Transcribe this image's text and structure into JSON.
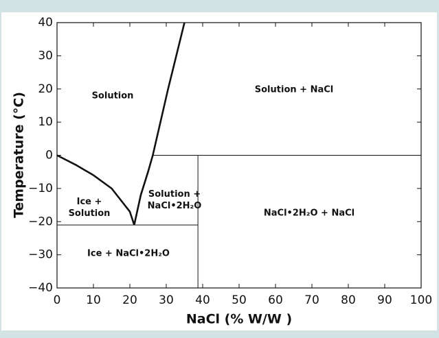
{
  "chart_data": {
    "type": "line",
    "x_label": "NaCl (% W/W )",
    "y_label": "Temperature (°C)",
    "xlim": [
      0,
      100
    ],
    "ylim": [
      -40,
      40
    ],
    "xticks": [
      0,
      10,
      20,
      30,
      40,
      50,
      60,
      70,
      80,
      90,
      100
    ],
    "yticks": [
      {
        "value": -40,
        "label": "−40"
      },
      {
        "value": -30,
        "label": "−30"
      },
      {
        "value": -20,
        "label": "−20"
      },
      {
        "value": -10,
        "label": "−10"
      },
      0,
      10,
      20,
      30,
      40
    ],
    "series": [
      {
        "color": "#111111",
        "width": 2.6,
        "x": [
          0,
          5,
          10,
          15,
          20,
          21.2
        ],
        "values": [
          0,
          -2.8,
          -6,
          -10,
          -17,
          -21
        ]
      },
      {
        "color": "#111111",
        "width": 2.6,
        "x": [
          21.2,
          23,
          25,
          26.3,
          30.5,
          35
        ],
        "values": [
          -21,
          -12,
          -5,
          0,
          20,
          40
        ]
      },
      {
        "color": "#111111",
        "width": 1,
        "x": [
          0,
          38.7
        ],
        "values": [
          -21,
          -21
        ]
      },
      {
        "color": "#111111",
        "width": 1,
        "x": [
          38.7,
          38.7
        ],
        "values": [
          0,
          -40
        ]
      },
      {
        "color": "#111111",
        "width": 1,
        "x": [
          26.3,
          100
        ],
        "values": [
          0,
          0
        ]
      }
    ],
    "annotations": [
      [
        "Solution"
      ],
      [
        "Solution + NaCl"
      ],
      [
        "Ice +",
        "Solution"
      ],
      [
        "Solution +",
        "NaCl•2H₂O"
      ],
      [
        "NaCl•2H₂O + NaCl"
      ],
      [
        "Ice + NaCl•2H₂O"
      ]
    ]
  }
}
